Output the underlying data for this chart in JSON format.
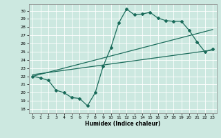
{
  "title": "",
  "xlabel": "Humidex (Indice chaleur)",
  "bg_color": "#cce8e0",
  "line_color": "#1a6b5a",
  "xlim": [
    -0.5,
    23.5
  ],
  "ylim": [
    17.5,
    30.8
  ],
  "yticks": [
    18,
    19,
    20,
    21,
    22,
    23,
    24,
    25,
    26,
    27,
    28,
    29,
    30
  ],
  "xticks": [
    0,
    1,
    2,
    3,
    4,
    5,
    6,
    7,
    8,
    9,
    10,
    11,
    12,
    13,
    14,
    15,
    16,
    17,
    18,
    19,
    20,
    21,
    22,
    23
  ],
  "line1_x": [
    0,
    1,
    2,
    3,
    4,
    5,
    6,
    7,
    8,
    9,
    10,
    11,
    12,
    13,
    14,
    15,
    16,
    17,
    18,
    19,
    20,
    21,
    22,
    23
  ],
  "line1_y": [
    22.0,
    21.8,
    21.5,
    20.3,
    20.0,
    19.4,
    19.3,
    18.4,
    20.0,
    23.2,
    25.5,
    28.5,
    30.2,
    29.5,
    29.6,
    29.8,
    29.1,
    28.8,
    28.7,
    28.7,
    27.6,
    26.2,
    25.0,
    25.3
  ],
  "line2_x": [
    0,
    23
  ],
  "line2_y": [
    22.2,
    25.2
  ],
  "line3_x": [
    0,
    23
  ],
  "line3_y": [
    22.0,
    27.7
  ],
  "marker": "D",
  "markersize": 2.0,
  "linewidth": 0.9
}
